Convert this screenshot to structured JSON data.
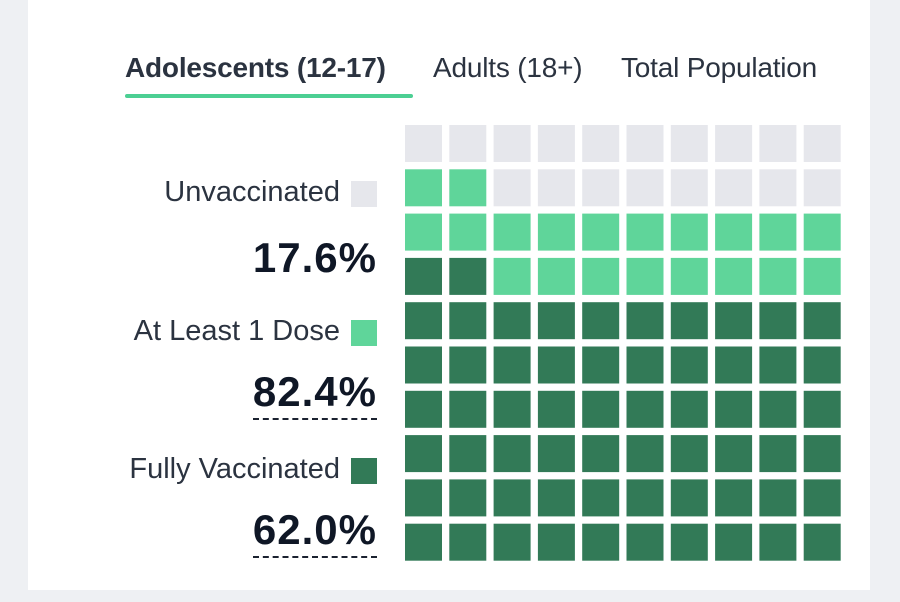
{
  "tabs": [
    {
      "label": "Adolescents (12-17)",
      "active": true
    },
    {
      "label": "Adults (18+)",
      "active": false
    },
    {
      "label": "Total Population",
      "active": false
    }
  ],
  "legend": [
    {
      "label": "Unvaccinated",
      "value": "17.6%",
      "color": "#e6e7ec"
    },
    {
      "label": "At Least 1 Dose",
      "value": "82.4%",
      "color": "#5fd59a"
    },
    {
      "label": "Fully Vaccinated",
      "value": "62.0%",
      "color": "#327a57"
    }
  ],
  "chart_data": {
    "type": "waffle",
    "rows": 10,
    "cols": 10,
    "series": [
      {
        "name": "Unvaccinated",
        "value": 17.6,
        "squares": 18,
        "color": "#e6e7ec"
      },
      {
        "name": "At Least 1 Dose",
        "value": 82.4,
        "squares": 82,
        "color": "#5fd59a"
      },
      {
        "name": "Fully Vaccinated",
        "value": 62.0,
        "squares": 62,
        "color": "#327a57"
      }
    ],
    "fill_order": "bottom-to-top, left-to-right"
  }
}
